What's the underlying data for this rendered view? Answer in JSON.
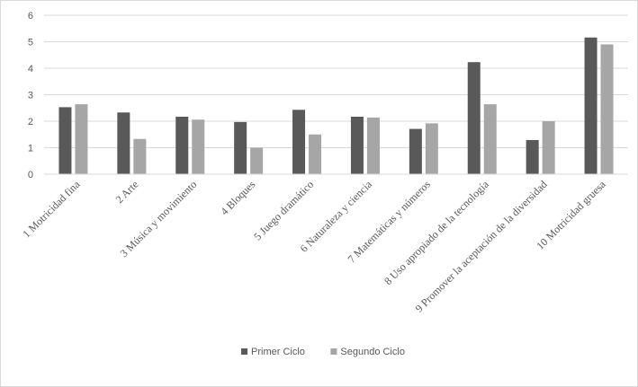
{
  "chart_data": {
    "type": "bar",
    "title": "",
    "xlabel": "",
    "ylabel": "",
    "ylim": [
      0,
      6
    ],
    "yticks": [
      0,
      1,
      2,
      3,
      4,
      5,
      6
    ],
    "grid": true,
    "legend_position": "bottom",
    "categories": [
      "1 Motricidad fina",
      "2 Arte",
      "3 Música y movimiento",
      "4 Bloques",
      "5 Juego dramático",
      "6 Naturaleza y ciencia",
      "7 Matemáticas y números",
      "8 Uso apropiado de la tecnología",
      "9 Promover la aceptación de la diversidad",
      "10 Motricidad gruesa"
    ],
    "series": [
      {
        "name": "Primer Ciclo",
        "color": "#595959",
        "values": [
          2.53,
          2.33,
          2.17,
          1.97,
          2.43,
          2.17,
          1.71,
          4.23,
          1.29,
          5.16
        ]
      },
      {
        "name": "Segundo Ciclo",
        "color": "#a6a6a6",
        "values": [
          2.64,
          1.33,
          2.06,
          1.0,
          1.5,
          2.14,
          1.92,
          2.64,
          2.0,
          4.9
        ]
      }
    ]
  }
}
